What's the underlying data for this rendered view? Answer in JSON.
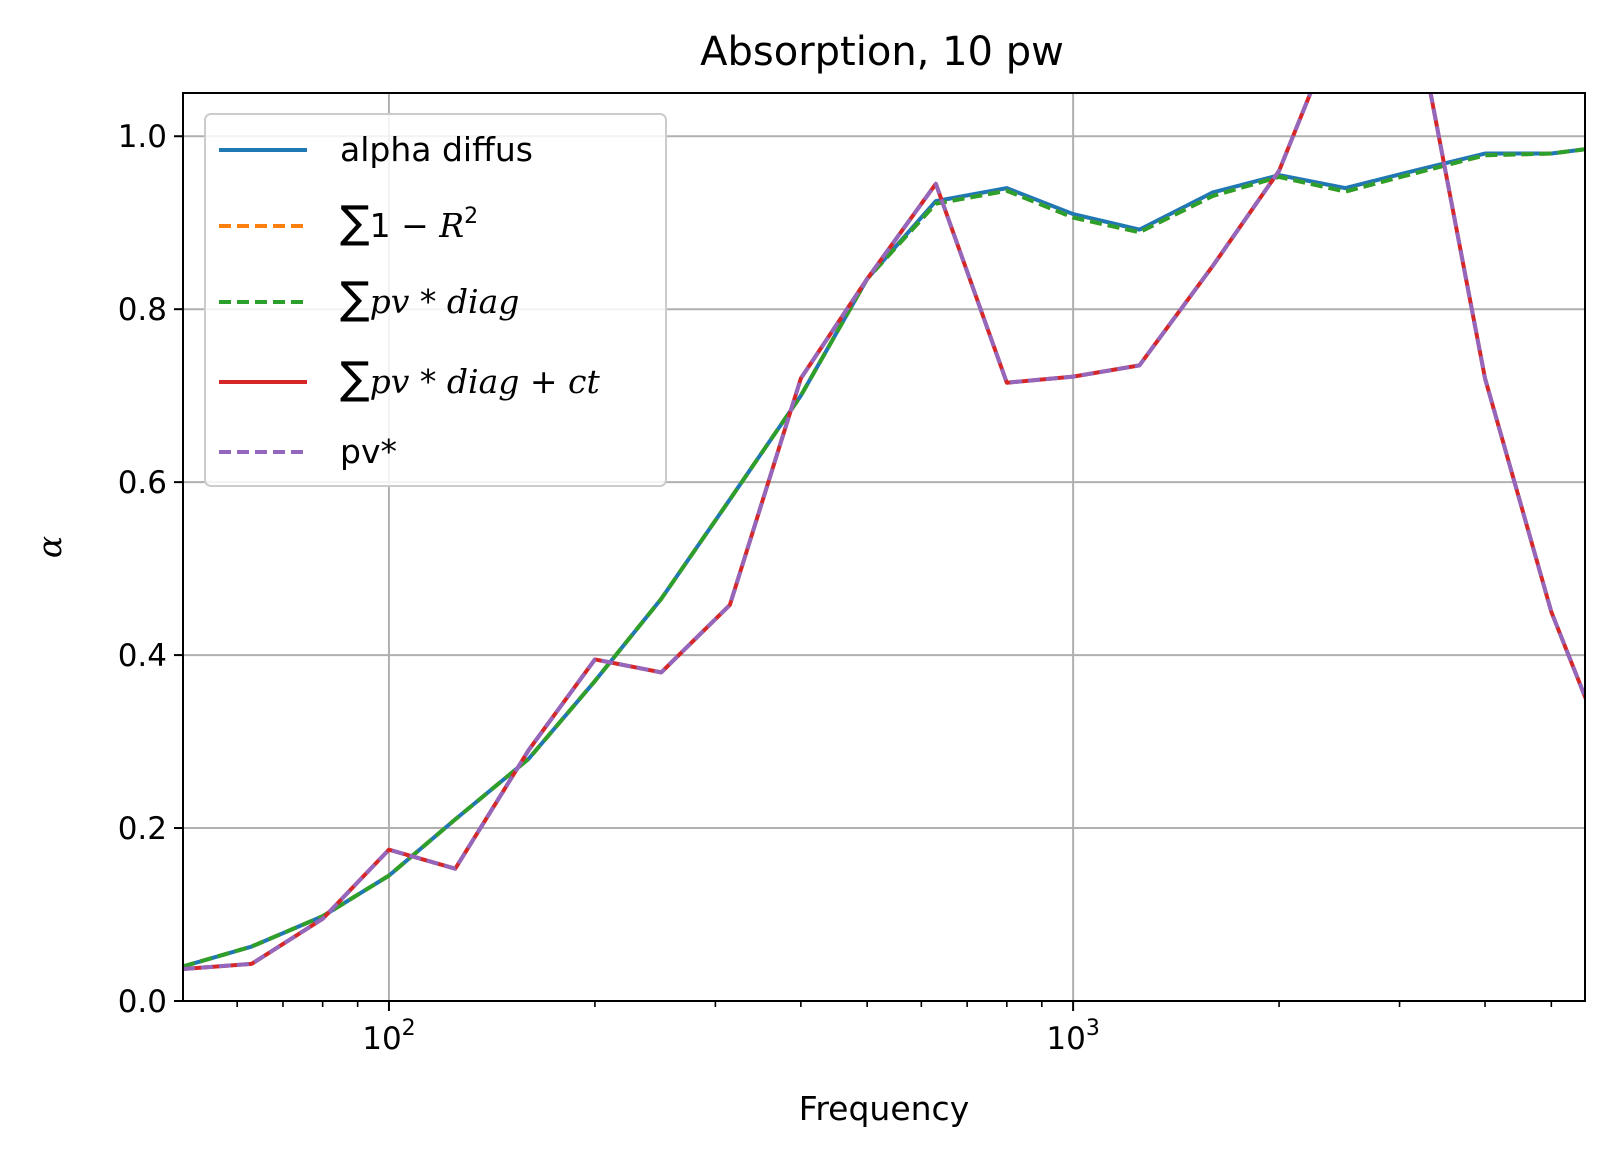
{
  "chart_data": {
    "type": "line",
    "title": "Absorption, 10 pw",
    "xlabel": "Frequency",
    "ylabel": "α",
    "xscale": "log",
    "xlim": [
      50,
      5600
    ],
    "ylim": [
      0,
      1.05
    ],
    "grid": true,
    "legend_position": "top-left",
    "x_ticks": [
      {
        "base": "10",
        "exp": "2"
      },
      {
        "base": "10",
        "exp": "3"
      }
    ],
    "y_ticks": [
      "0.0",
      "0.2",
      "0.4",
      "0.6",
      "0.8",
      "1.0"
    ],
    "x": [
      50,
      63,
      80,
      100,
      125,
      160,
      200,
      250,
      315,
      400,
      500,
      630,
      800,
      1000,
      1250,
      1600,
      2000,
      2500,
      3150,
      4000,
      5000,
      6300
    ],
    "series": [
      {
        "name": "alpha diffus",
        "color": "#1f77b4",
        "dash": "solid",
        "values": [
          0.04,
          0.063,
          0.098,
          0.145,
          0.21,
          0.28,
          0.37,
          0.465,
          0.58,
          0.7,
          0.835,
          0.925,
          0.94,
          0.91,
          0.892,
          0.935,
          0.955,
          0.94,
          0.96,
          0.98,
          0.98,
          0.99
        ]
      },
      {
        "name": "∑1 − R²",
        "label_parts": [
          {
            "t": "∑",
            "c": "math-up"
          },
          {
            "t": "1 − ",
            "c": "math-up"
          },
          {
            "t": "R",
            "c": "math"
          }
        ],
        "label_sup": "2",
        "color": "#ff7f0e",
        "dash": "dashed",
        "values": [
          0.04,
          0.063,
          0.098,
          0.145,
          0.21,
          0.28,
          0.37,
          0.465,
          0.58,
          0.7,
          0.835,
          0.922,
          0.937,
          0.906,
          0.889,
          0.931,
          0.953,
          0.936,
          0.957,
          0.978,
          0.98,
          0.99
        ]
      },
      {
        "name": "∑pv * diag",
        "label_parts": [
          {
            "t": "∑",
            "c": "math-up"
          },
          {
            "t": "pv",
            "c": "math"
          },
          {
            "t": " * ",
            "c": "math-up"
          },
          {
            "t": "diag",
            "c": "math"
          }
        ],
        "color": "#2ca02c",
        "dash": "dashed",
        "values": [
          0.04,
          0.063,
          0.098,
          0.145,
          0.21,
          0.28,
          0.37,
          0.465,
          0.58,
          0.7,
          0.835,
          0.922,
          0.937,
          0.906,
          0.889,
          0.931,
          0.953,
          0.936,
          0.957,
          0.978,
          0.98,
          0.99
        ]
      },
      {
        "name": "∑pv * diag + ct",
        "label_parts": [
          {
            "t": "∑",
            "c": "math-up"
          },
          {
            "t": "pv",
            "c": "math"
          },
          {
            "t": " * ",
            "c": "math-up"
          },
          {
            "t": "diag",
            "c": "math"
          },
          {
            "t": " + ",
            "c": "math-up"
          },
          {
            "t": "ct",
            "c": "math"
          }
        ],
        "color": "#d62728",
        "dash": "solid",
        "values": [
          0.037,
          0.043,
          0.095,
          0.175,
          0.153,
          0.29,
          0.395,
          0.38,
          0.458,
          0.72,
          0.835,
          0.945,
          0.715,
          0.722,
          0.735,
          0.85,
          0.96,
          1.15,
          1.15,
          0.72,
          0.45,
          0.25
        ]
      },
      {
        "name": "pv*",
        "color": "#9467bd",
        "dash": "dashed",
        "values": [
          0.037,
          0.043,
          0.095,
          0.175,
          0.153,
          0.29,
          0.395,
          0.38,
          0.458,
          0.72,
          0.835,
          0.945,
          0.715,
          0.722,
          0.735,
          0.85,
          0.96,
          1.15,
          1.15,
          0.72,
          0.45,
          0.25
        ]
      }
    ]
  }
}
